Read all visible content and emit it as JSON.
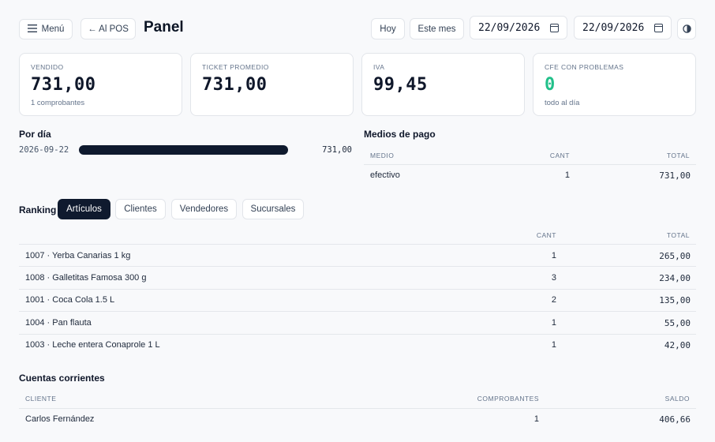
{
  "header": {
    "menu_label": "Menú",
    "pos_label": "← Al POS",
    "title": "Panel",
    "today_label": "Hoy",
    "month_label": "Este mes",
    "date_from": "22/09/2026",
    "date_to": "22/09/2026"
  },
  "cards": [
    {
      "label": "VENDIDO",
      "value": "731,00",
      "sub": "1 comprobantes"
    },
    {
      "label": "TICKET PROMEDIO",
      "value": "731,00",
      "sub": ""
    },
    {
      "label": "IVA",
      "value": "99,45",
      "sub": ""
    },
    {
      "label": "CFE CON PROBLEMAS",
      "value": "0",
      "sub": "todo al día"
    }
  ],
  "by_day": {
    "title": "Por día",
    "rows": [
      {
        "date": "2026-09-22",
        "amount": "731,00",
        "fraction": 1.0
      }
    ]
  },
  "payments": {
    "title": "Medios de pago",
    "col_medio": "MEDIO",
    "col_cant": "CANT",
    "col_total": "TOTAL",
    "rows": [
      {
        "medio": "efectivo",
        "cant": "1",
        "total": "731,00"
      }
    ]
  },
  "ranking": {
    "title": "Ranking",
    "tabs": [
      "Artículos",
      "Clientes",
      "Vendedores",
      "Sucursales"
    ],
    "active_tab": "Artículos",
    "col_cant": "CANT",
    "col_total": "TOTAL",
    "rows": [
      {
        "item": "1007 · Yerba Canarias 1 kg",
        "cant": "1",
        "total": "265,00"
      },
      {
        "item": "1008 · Galletitas Famosa 300 g",
        "cant": "3",
        "total": "234,00"
      },
      {
        "item": "1001 · Coca Cola 1.5 L",
        "cant": "2",
        "total": "135,00"
      },
      {
        "item": "1004 · Pan flauta",
        "cant": "1",
        "total": "55,00"
      },
      {
        "item": "1003 · Leche entera Conaprole 1 L",
        "cant": "1",
        "total": "42,00"
      }
    ]
  },
  "accounts": {
    "title": "Cuentas corrientes",
    "col_cliente": "CLIENTE",
    "col_comprobantes": "COMPROBANTES",
    "col_saldo": "SALDO",
    "rows": [
      {
        "cliente": "Carlos Fernández",
        "comprobantes": "1",
        "saldo": "406,66"
      }
    ]
  },
  "colors": {
    "accent": "#0f1a2e",
    "ok": "#22c08a",
    "background": "#f8f9fb"
  },
  "icons": [
    "menu-icon",
    "calendar-icon",
    "theme-toggle-icon"
  ]
}
